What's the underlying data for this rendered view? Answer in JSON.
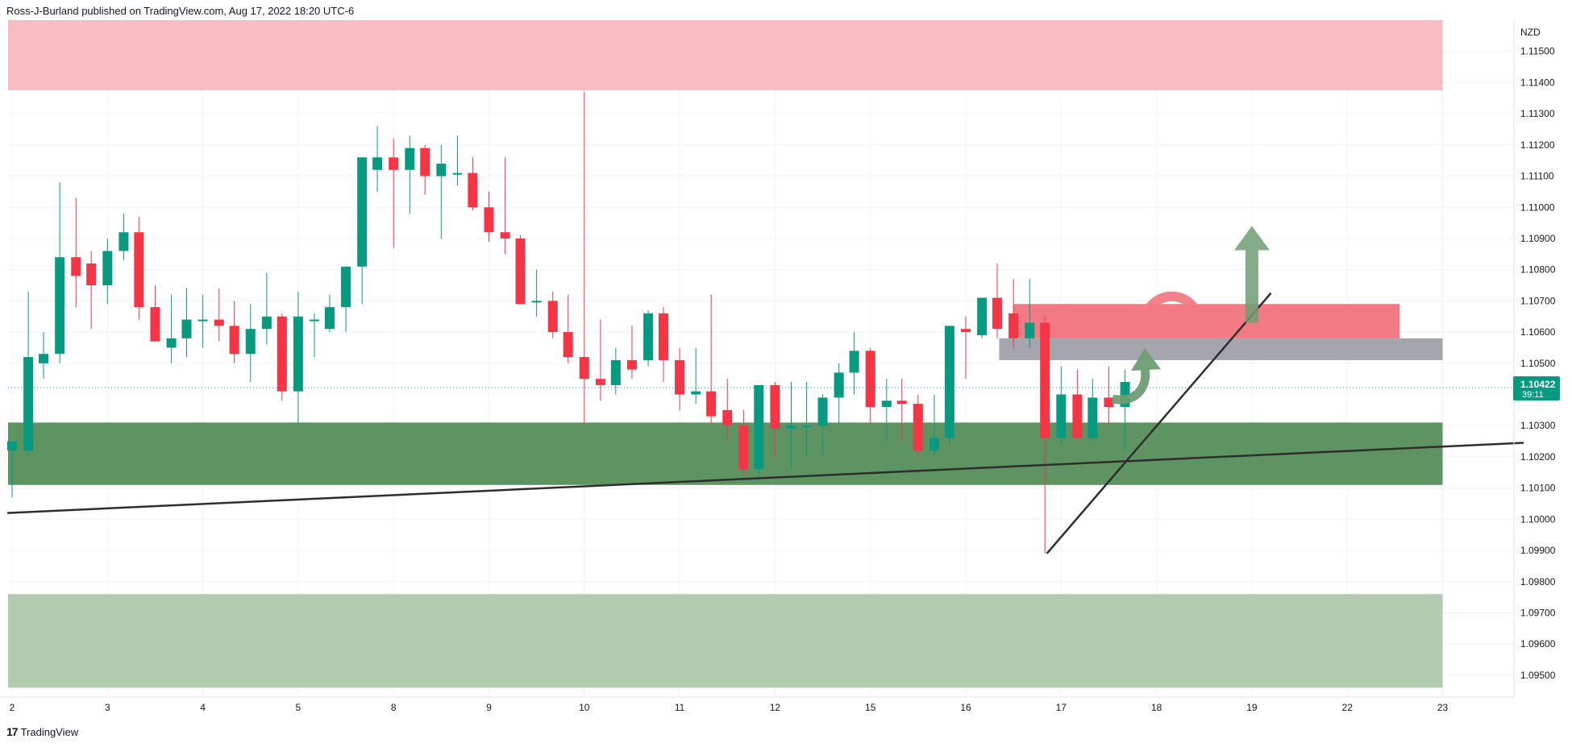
{
  "header": {
    "publisher_line": "Ross-J-Burland published on TradingView.com, Aug 17, 2022 18:20 UTC-6"
  },
  "footer": {
    "brand": "TradingView",
    "logo_icon": "tradingview-logo-icon"
  },
  "colors": {
    "bull": "#089981",
    "bear": "#f23645",
    "axis_text": "#131722",
    "resistance_zone": "#f9bcc1",
    "support_zone": "#5e9462",
    "lower_zone": "#b2ccb0",
    "supply_box": "#f27a84",
    "grey_box": "#a5a5ad",
    "trendline": "#2e2e2e",
    "arrow_up": "#6f9e74",
    "arrow_curve_red": "#f27a84"
  },
  "chart_data": {
    "type": "candlestick",
    "currency": "NZD",
    "ylim": [
      1.0943,
      1.116
    ],
    "price_ticks": [
      "1.11500",
      "1.11400",
      "1.11300",
      "1.11200",
      "1.11100",
      "1.11000",
      "1.10900",
      "1.10800",
      "1.10700",
      "1.10600",
      "1.10500",
      "1.10300",
      "1.10200",
      "1.10100",
      "1.10000",
      "1.09900",
      "1.09800",
      "1.09700",
      "1.09600",
      "1.09500"
    ],
    "time_ticks": [
      "2",
      "3",
      "4",
      "5",
      "8",
      "9",
      "10",
      "11",
      "12",
      "15",
      "16",
      "17",
      "18",
      "19",
      "22",
      "23"
    ],
    "current_price": {
      "value": 1.10422,
      "label": "1.10422",
      "countdown": "39:11"
    },
    "candles": [
      {
        "t": 0.0,
        "o": 1.1022,
        "h": 1.1025,
        "l": 1.1007,
        "c": 1.1025
      },
      {
        "t": 0.17,
        "o": 1.1022,
        "h": 1.1073,
        "l": 1.102,
        "c": 1.1052
      },
      {
        "t": 0.33,
        "o": 1.105,
        "h": 1.106,
        "l": 1.1045,
        "c": 1.1053
      },
      {
        "t": 0.5,
        "o": 1.1053,
        "h": 1.1108,
        "l": 1.105,
        "c": 1.1084
      },
      {
        "t": 0.67,
        "o": 1.1084,
        "h": 1.1103,
        "l": 1.1068,
        "c": 1.1078
      },
      {
        "t": 0.83,
        "o": 1.1082,
        "h": 1.1086,
        "l": 1.1061,
        "c": 1.1075
      },
      {
        "t": 1.0,
        "o": 1.1075,
        "h": 1.109,
        "l": 1.1069,
        "c": 1.1086
      },
      {
        "t": 1.17,
        "o": 1.1086,
        "h": 1.1098,
        "l": 1.1083,
        "c": 1.1092
      },
      {
        "t": 1.33,
        "o": 1.1092,
        "h": 1.1097,
        "l": 1.1064,
        "c": 1.1068
      },
      {
        "t": 1.5,
        "o": 1.1068,
        "h": 1.1075,
        "l": 1.1057,
        "c": 1.1057
      },
      {
        "t": 1.67,
        "o": 1.1055,
        "h": 1.1072,
        "l": 1.105,
        "c": 1.1058
      },
      {
        "t": 1.83,
        "o": 1.1058,
        "h": 1.1074,
        "l": 1.1052,
        "c": 1.1064
      },
      {
        "t": 2.0,
        "o": 1.1064,
        "h": 1.1072,
        "l": 1.1055,
        "c": 1.1064
      },
      {
        "t": 2.17,
        "o": 1.1064,
        "h": 1.1074,
        "l": 1.1057,
        "c": 1.1062
      },
      {
        "t": 2.33,
        "o": 1.1062,
        "h": 1.107,
        "l": 1.105,
        "c": 1.1053
      },
      {
        "t": 2.5,
        "o": 1.1053,
        "h": 1.1069,
        "l": 1.1044,
        "c": 1.1061
      },
      {
        "t": 2.67,
        "o": 1.1061,
        "h": 1.1079,
        "l": 1.1056,
        "c": 1.1065
      },
      {
        "t": 2.83,
        "o": 1.1065,
        "h": 1.1066,
        "l": 1.1038,
        "c": 1.1041
      },
      {
        "t": 3.0,
        "o": 1.1041,
        "h": 1.1073,
        "l": 1.103,
        "c": 1.1065
      },
      {
        "t": 3.17,
        "o": 1.1064,
        "h": 1.1066,
        "l": 1.1052,
        "c": 1.1064
      },
      {
        "t": 3.33,
        "o": 1.1061,
        "h": 1.1072,
        "l": 1.106,
        "c": 1.1068
      },
      {
        "t": 3.5,
        "o": 1.1068,
        "h": 1.1081,
        "l": 1.106,
        "c": 1.1081
      },
      {
        "t": 3.67,
        "o": 1.1081,
        "h": 1.1116,
        "l": 1.1069,
        "c": 1.1116
      },
      {
        "t": 3.83,
        "o": 1.1112,
        "h": 1.1126,
        "l": 1.1105,
        "c": 1.1116
      },
      {
        "t": 4.0,
        "o": 1.1116,
        "h": 1.1122,
        "l": 1.1087,
        "c": 1.1112
      },
      {
        "t": 4.17,
        "o": 1.1112,
        "h": 1.1123,
        "l": 1.1098,
        "c": 1.1119
      },
      {
        "t": 4.33,
        "o": 1.1119,
        "h": 1.112,
        "l": 1.1104,
        "c": 1.111
      },
      {
        "t": 4.5,
        "o": 1.111,
        "h": 1.112,
        "l": 1.109,
        "c": 1.1114
      },
      {
        "t": 4.67,
        "o": 1.1111,
        "h": 1.1123,
        "l": 1.1107,
        "c": 1.1111
      },
      {
        "t": 4.83,
        "o": 1.1111,
        "h": 1.1116,
        "l": 1.1099,
        "c": 1.11
      },
      {
        "t": 5.0,
        "o": 1.11,
        "h": 1.1105,
        "l": 1.1089,
        "c": 1.1092
      },
      {
        "t": 5.17,
        "o": 1.1092,
        "h": 1.1116,
        "l": 1.1085,
        "c": 1.109
      },
      {
        "t": 5.33,
        "o": 1.109,
        "h": 1.1091,
        "l": 1.1069,
        "c": 1.1069
      },
      {
        "t": 5.5,
        "o": 1.107,
        "h": 1.108,
        "l": 1.1065,
        "c": 1.107
      },
      {
        "t": 5.67,
        "o": 1.107,
        "h": 1.1073,
        "l": 1.1058,
        "c": 1.106
      },
      {
        "t": 5.83,
        "o": 1.106,
        "h": 1.1072,
        "l": 1.105,
        "c": 1.1052
      },
      {
        "t": 6.0,
        "o": 1.1052,
        "h": 1.1137,
        "l": 1.103,
        "c": 1.1045
      },
      {
        "t": 6.17,
        "o": 1.1045,
        "h": 1.1064,
        "l": 1.1038,
        "c": 1.1043
      },
      {
        "t": 6.33,
        "o": 1.1043,
        "h": 1.1055,
        "l": 1.104,
        "c": 1.1051
      },
      {
        "t": 6.5,
        "o": 1.1051,
        "h": 1.1062,
        "l": 1.1045,
        "c": 1.1048
      },
      {
        "t": 6.67,
        "o": 1.1051,
        "h": 1.1067,
        "l": 1.1049,
        "c": 1.1066
      },
      {
        "t": 6.83,
        "o": 1.1066,
        "h": 1.1068,
        "l": 1.1044,
        "c": 1.1051
      },
      {
        "t": 7.0,
        "o": 1.1051,
        "h": 1.1055,
        "l": 1.1035,
        "c": 1.104
      },
      {
        "t": 7.17,
        "o": 1.104,
        "h": 1.1055,
        "l": 1.1037,
        "c": 1.1041
      },
      {
        "t": 7.33,
        "o": 1.1041,
        "h": 1.1072,
        "l": 1.103,
        "c": 1.1033
      },
      {
        "t": 7.5,
        "o": 1.1035,
        "h": 1.1045,
        "l": 1.1025,
        "c": 1.103
      },
      {
        "t": 7.67,
        "o": 1.103,
        "h": 1.1035,
        "l": 1.1014,
        "c": 1.1016
      },
      {
        "t": 7.83,
        "o": 1.1016,
        "h": 1.1043,
        "l": 1.1012,
        "c": 1.1043
      },
      {
        "t": 8.0,
        "o": 1.1043,
        "h": 1.1044,
        "l": 1.102,
        "c": 1.1029
      },
      {
        "t": 8.17,
        "o": 1.1029,
        "h": 1.1044,
        "l": 1.1016,
        "c": 1.103
      },
      {
        "t": 8.33,
        "o": 1.103,
        "h": 1.1044,
        "l": 1.102,
        "c": 1.103
      },
      {
        "t": 8.5,
        "o": 1.103,
        "h": 1.104,
        "l": 1.102,
        "c": 1.1039
      },
      {
        "t": 8.67,
        "o": 1.1039,
        "h": 1.105,
        "l": 1.103,
        "c": 1.1047
      },
      {
        "t": 8.83,
        "o": 1.1047,
        "h": 1.106,
        "l": 1.104,
        "c": 1.1054
      },
      {
        "t": 9.0,
        "o": 1.1054,
        "h": 1.1055,
        "l": 1.103,
        "c": 1.1036
      },
      {
        "t": 9.17,
        "o": 1.1036,
        "h": 1.1045,
        "l": 1.1025,
        "c": 1.1038
      },
      {
        "t": 9.33,
        "o": 1.1038,
        "h": 1.1045,
        "l": 1.1025,
        "c": 1.1037
      },
      {
        "t": 9.5,
        "o": 1.1037,
        "h": 1.104,
        "l": 1.102,
        "c": 1.1022
      },
      {
        "t": 9.67,
        "o": 1.1022,
        "h": 1.104,
        "l": 1.102,
        "c": 1.1026
      },
      {
        "t": 9.83,
        "o": 1.1026,
        "h": 1.1062,
        "l": 1.1024,
        "c": 1.1062
      },
      {
        "t": 10.0,
        "o": 1.1061,
        "h": 1.1065,
        "l": 1.1045,
        "c": 1.106
      },
      {
        "t": 10.17,
        "o": 1.1059,
        "h": 1.1071,
        "l": 1.1058,
        "c": 1.1071
      },
      {
        "t": 10.33,
        "o": 1.1071,
        "h": 1.1082,
        "l": 1.1058,
        "c": 1.1061
      },
      {
        "t": 10.5,
        "o": 1.1066,
        "h": 1.1077,
        "l": 1.1055,
        "c": 1.1058
      },
      {
        "t": 10.67,
        "o": 1.1058,
        "h": 1.1077,
        "l": 1.1055,
        "c": 1.1063
      },
      {
        "t": 10.83,
        "o": 1.1063,
        "h": 1.1065,
        "l": 1.0989,
        "c": 1.1026
      },
      {
        "t": 11.0,
        "o": 1.1026,
        "h": 1.1049,
        "l": 1.1024,
        "c": 1.104
      },
      {
        "t": 11.17,
        "o": 1.104,
        "h": 1.1048,
        "l": 1.1025,
        "c": 1.1026
      },
      {
        "t": 11.33,
        "o": 1.1026,
        "h": 1.1045,
        "l": 1.1025,
        "c": 1.1039
      },
      {
        "t": 11.5,
        "o": 1.1039,
        "h": 1.1049,
        "l": 1.103,
        "c": 1.1036
      },
      {
        "t": 11.67,
        "o": 1.1036,
        "h": 1.1048,
        "l": 1.1022,
        "c": 1.1044
      }
    ],
    "zones": [
      {
        "name": "resistance-zone",
        "y_top": 1.116,
        "y_bottom": 1.11375,
        "x_end": 15.0,
        "color": "#f9bcc1"
      },
      {
        "name": "support-zone",
        "y_top": 1.1031,
        "y_bottom": 1.1011,
        "x_end": 15.0,
        "color": "#5e9462"
      },
      {
        "name": "lower-demand-zone",
        "y_top": 1.0976,
        "y_bottom": 1.0946,
        "x_end": 15.0,
        "color": "#b2ccb0"
      },
      {
        "name": "supply-box",
        "y_top": 1.1069,
        "y_bottom": 1.1058,
        "x_start": 10.5,
        "x_end": 14.55,
        "color": "#f27a84"
      },
      {
        "name": "grey-box",
        "y_top": 1.1058,
        "y_bottom": 1.1051,
        "x_start": 10.35,
        "x_end": 15.0,
        "color": "#a5a5ad"
      }
    ],
    "trendlines": [
      {
        "name": "long-trendline",
        "x1": -0.05,
        "y1": 1.1002,
        "x2": 15.85,
        "y2": 1.10245
      },
      {
        "name": "rising-trendline",
        "x1": 10.85,
        "y1": 1.0989,
        "x2": 13.2,
        "y2": 1.10725
      }
    ],
    "arrows": [
      {
        "name": "up-arrow",
        "type": "straight-up",
        "x": 13.0,
        "y_from": 1.1063,
        "y_to": 1.1094,
        "color": "#6f9e74"
      },
      {
        "name": "curve-down-arrow",
        "type": "curve",
        "x": 12.1,
        "y": 1.1068,
        "color": "#f27a84"
      },
      {
        "name": "curve-up-arrow",
        "type": "curve",
        "x": 11.75,
        "y": 1.1045,
        "color": "#6f9e74"
      }
    ]
  }
}
